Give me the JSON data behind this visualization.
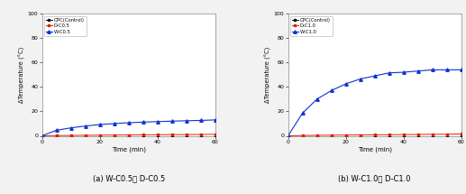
{
  "time": [
    0,
    5,
    10,
    15,
    20,
    25,
    30,
    35,
    40,
    45,
    50,
    55,
    60
  ],
  "chart_a": {
    "OPC": [
      0,
      0,
      0,
      0,
      0,
      0,
      0,
      0,
      0,
      0,
      0,
      0,
      0
    ],
    "D": [
      0,
      0.2,
      0.3,
      0.4,
      0.5,
      0.6,
      0.7,
      0.8,
      0.9,
      1.0,
      1.0,
      1.1,
      1.2
    ],
    "W": [
      0,
      4.5,
      6.5,
      8.0,
      9.2,
      10.0,
      10.7,
      11.2,
      11.6,
      12.0,
      12.3,
      12.6,
      13.0
    ]
  },
  "chart_b": {
    "OPC": [
      0,
      0,
      0,
      0,
      0,
      0,
      0,
      0,
      0,
      0,
      0,
      0,
      0
    ],
    "D": [
      0,
      0.2,
      0.4,
      0.5,
      0.6,
      0.7,
      0.8,
      0.9,
      1.0,
      1.1,
      1.2,
      1.3,
      1.5
    ],
    "W": [
      0,
      18.5,
      30.0,
      37.0,
      42.5,
      46.5,
      49.0,
      51.5,
      52.0,
      53.0,
      54.0,
      54.0,
      54.0
    ]
  },
  "colors": {
    "OPC": "#111111",
    "D": "#dd2200",
    "W": "#1133cc"
  },
  "ylim": [
    0,
    100
  ],
  "xlim": [
    0,
    60
  ],
  "xticks": [
    0,
    20,
    40,
    60
  ],
  "yticks": [
    0,
    20,
    40,
    60,
    80,
    100
  ],
  "xlabel": "Time (min)",
  "ylabel": "ΔTemperature (°C)",
  "legend_a": [
    "OPC(Control)",
    "D-C0.5",
    "W-C0.5"
  ],
  "legend_b": [
    "OPC(Control)",
    "D-C1.0",
    "W-C1.0"
  ],
  "caption_a": "(a) W-C0.5， D-C0.5",
  "caption_b": "(b) W-C1.0， D-C1.0",
  "bg_color": "#f2f2f2",
  "plot_bg": "#ffffff"
}
